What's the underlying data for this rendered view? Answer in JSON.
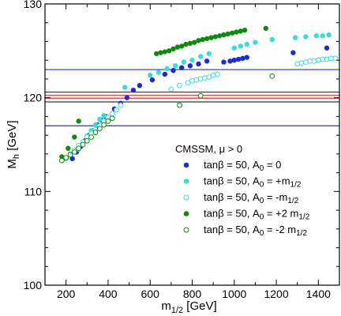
{
  "chart_data": {
    "type": "scatter",
    "title": "",
    "xlabel": "m",
    "xlabel_sub": "1/2",
    "xlabel_unit": " [GeV]",
    "ylabel": "M",
    "ylabel_sub": "h",
    "ylabel_unit": " [GeV]",
    "xlim": [
      100,
      1500
    ],
    "ylim": [
      100,
      130
    ],
    "x_ticks": [
      200,
      400,
      600,
      800,
      1000,
      1200,
      1400
    ],
    "y_ticks": [
      100,
      110,
      120,
      130
    ],
    "x_tick_labels": [
      "200",
      "400",
      "600",
      "800",
      "1000",
      "1200",
      "1400"
    ],
    "y_tick_labels": [
      "100",
      "110",
      "120",
      "130"
    ],
    "grid": false,
    "legend_position": "lower-right",
    "legend_title": "CMSSM, μ > 0",
    "reference_lines": [
      {
        "y": 123.0,
        "color": "#2c2cd8"
      },
      {
        "y": 117.0,
        "color": "#2c2cd8"
      },
      {
        "y": 120.6,
        "color": "#333333"
      },
      {
        "y": 120.25,
        "color": "#dd3333"
      },
      {
        "y": 119.95,
        "color": "#dd3333"
      },
      {
        "y": 119.55,
        "color": "#333333"
      }
    ],
    "series": [
      {
        "label_main": "tanβ = 50, A",
        "label_sub": "0",
        "label_rest": " = 0",
        "label_rest_sub": "",
        "color": "#1a2ad8",
        "filled": true,
        "x": [
          230,
          250,
          270,
          290,
          310,
          330,
          350,
          370,
          390,
          430,
          460,
          490,
          520,
          550,
          610,
          670,
          710,
          750,
          790,
          830,
          870,
          950,
          980,
          1000,
          1020,
          1040,
          1060,
          1280,
          1440
        ],
        "y": [
          113.5,
          114.2,
          114.8,
          115.4,
          116.0,
          116.5,
          117.1,
          117.6,
          118.0,
          118.8,
          119.4,
          120.0,
          120.8,
          121.3,
          121.9,
          122.5,
          122.9,
          123.2,
          123.4,
          123.6,
          123.9,
          123.8,
          123.9,
          124.0,
          124.1,
          124.2,
          124.3,
          124.8,
          125.3
        ]
      },
      {
        "label_main": "tanβ = 50, A",
        "label_sub": "0",
        "label_rest": " = +m",
        "label_rest_sub": "1/2",
        "color": "#3ddadb",
        "filled": true,
        "x": [
          260,
          280,
          300,
          320,
          340,
          360,
          380,
          480,
          600,
          640,
          680,
          720,
          760,
          800,
          840,
          880,
          1000,
          1030,
          1060,
          1100,
          1180,
          1290,
          1340,
          1390,
          1420,
          1450
        ],
        "y": [
          114.5,
          115.2,
          115.9,
          116.5,
          117.1,
          117.7,
          118.1,
          121.1,
          122.4,
          122.7,
          123.1,
          123.4,
          123.8,
          124.0,
          124.4,
          124.7,
          125.3,
          125.5,
          125.7,
          125.9,
          126.2,
          126.4,
          126.5,
          126.6,
          126.6,
          126.7
        ]
      },
      {
        "label_main": "tanβ = 50, A",
        "label_sub": "0",
        "label_rest": " = -m",
        "label_rest_sub": "1/2",
        "color": "#3ddadb",
        "filled": false,
        "x": [
          200,
          220,
          240,
          260,
          280,
          300,
          320,
          340,
          360,
          380,
          400,
          420,
          440,
          460,
          700,
          740,
          780,
          800,
          820,
          840,
          860,
          880,
          900,
          920,
          1300,
          1320,
          1340,
          1360,
          1380,
          1400,
          1420,
          1440,
          1460,
          1480
        ],
        "y": [
          113.5,
          114.0,
          114.4,
          114.9,
          115.3,
          115.8,
          116.2,
          116.6,
          117.0,
          117.5,
          117.9,
          118.3,
          118.7,
          119.2,
          120.9,
          121.3,
          121.6,
          121.8,
          121.9,
          122.0,
          122.1,
          122.2,
          122.4,
          122.5,
          123.6,
          123.7,
          123.8,
          123.9,
          123.9,
          124.0,
          124.1,
          124.1,
          124.2,
          124.2
        ]
      },
      {
        "label_main": "tanβ = 50, A",
        "label_sub": "0",
        "label_rest": " = +2 m",
        "label_rest_sub": "1/2",
        "color": "#0e8a0e",
        "filled": true,
        "x": [
          180,
          210,
          240,
          260,
          630,
          650,
          670,
          690,
          710,
          730,
          750,
          770,
          790,
          810,
          830,
          850,
          870,
          890,
          910,
          930,
          950,
          970,
          990,
          1010,
          1030,
          1050,
          1150
        ],
        "y": [
          113.7,
          114.6,
          115.8,
          117.5,
          124.7,
          124.8,
          124.9,
          125.0,
          125.2,
          125.4,
          125.5,
          125.7,
          125.8,
          125.9,
          126.1,
          126.2,
          126.3,
          126.4,
          126.5,
          126.6,
          126.7,
          126.8,
          126.9,
          127.0,
          127.1,
          127.2,
          127.4
        ]
      },
      {
        "label_main": "tanβ = 50, A",
        "label_sub": "0",
        "label_rest": " = -2 m",
        "label_rest_sub": "1/2",
        "color": "#0e8a0e",
        "filled": false,
        "x": [
          180,
          200,
          220,
          240,
          260,
          280,
          300,
          320,
          340,
          360,
          380,
          400,
          420,
          740,
          840,
          1180
        ],
        "y": [
          113.3,
          113.6,
          113.9,
          114.2,
          114.6,
          115.0,
          115.4,
          115.8,
          116.3,
          116.7,
          117.1,
          117.5,
          117.8,
          119.2,
          120.2,
          122.3
        ]
      }
    ]
  }
}
